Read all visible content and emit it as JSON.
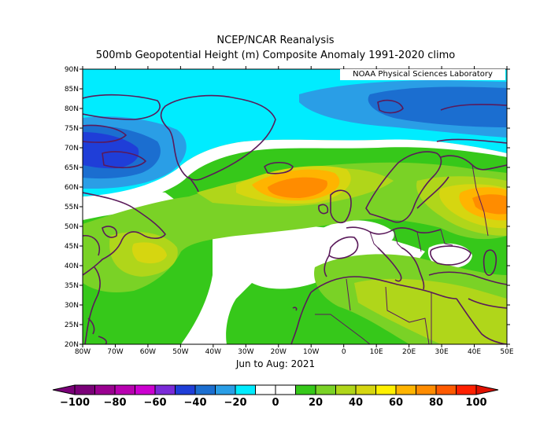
{
  "title": "NCEP/NCAR Reanalysis",
  "subtitle": "500mb Geopotential Height (m) Composite Anomaly 1991-2020 climo",
  "credit": "NOAA Physical Sciences Laboratory",
  "period": "Jun to Aug: 2021",
  "lat_labels": [
    "90N",
    "85N",
    "80N",
    "75N",
    "70N",
    "65N",
    "60N",
    "55N",
    "50N",
    "45N",
    "40N",
    "35N",
    "30N",
    "25N",
    "20N"
  ],
  "lon_labels": [
    "80W",
    "70W",
    "60W",
    "50W",
    "40W",
    "30W",
    "20W",
    "10W",
    "0",
    "10E",
    "20E",
    "30E",
    "40E",
    "50E"
  ],
  "colorbar": {
    "labels": [
      "-100",
      "-80",
      "-60",
      "-40",
      "-20",
      "0",
      "20",
      "40",
      "60",
      "80",
      "100"
    ],
    "colors": [
      "#7a0078",
      "#9a0090",
      "#b800b0",
      "#cc00d0",
      "#7a2ad8",
      "#1f3ed8",
      "#1b6ed0",
      "#2a9ee6",
      "#00ecff",
      "#ffffff",
      "#ffffff",
      "#36c81a",
      "#7ad226",
      "#b0d61a",
      "#d6d610",
      "#fff000",
      "#ffb400",
      "#ff8c00",
      "#ff5a00",
      "#ff2000"
    ]
  },
  "colors": {
    "land_outline": "#5a1a5a",
    "frame": "#000000"
  }
}
